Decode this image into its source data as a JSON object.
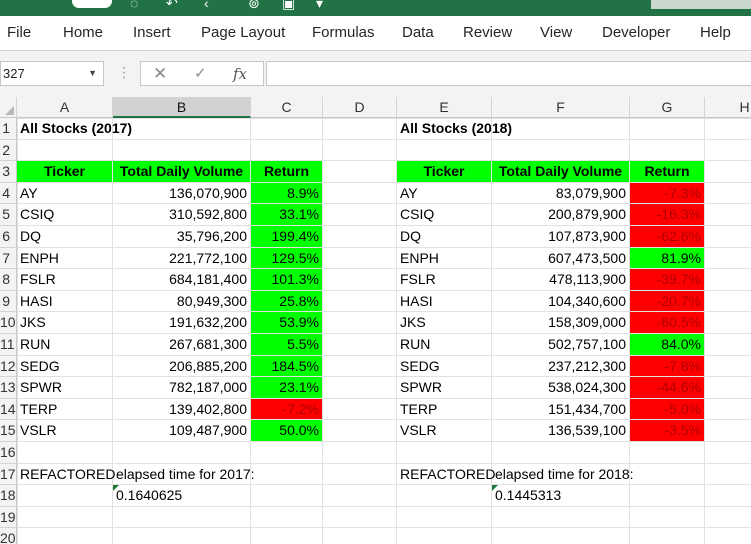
{
  "ribbon": {
    "tabs": [
      "File",
      "Home",
      "Insert",
      "Page Layout",
      "Formulas",
      "Data",
      "Review",
      "View",
      "Developer",
      "Help"
    ]
  },
  "formula_bar": {
    "name_box": "327",
    "cancel_icon": "x-icon",
    "enter_icon": "check-icon",
    "fx_label": "fx",
    "formula": ""
  },
  "columns": [
    "A",
    "B",
    "C",
    "D",
    "E",
    "F",
    "G",
    "H"
  ],
  "rows": [
    "1",
    "2",
    "3",
    "4",
    "5",
    "6",
    "7",
    "8",
    "9",
    "10",
    "11",
    "12",
    "13",
    "14",
    "15",
    "16",
    "17",
    "18",
    "19",
    "20"
  ],
  "sheet": {
    "title_2017": "All Stocks (2017)",
    "title_2018": "All Stocks (2018)",
    "headers": [
      "Ticker",
      "Total Daily Volume",
      "Return"
    ],
    "data_2017": [
      {
        "ticker": "AY",
        "volume": "136,070,900",
        "return": "8.9%",
        "status": "positive"
      },
      {
        "ticker": "CSIQ",
        "volume": "310,592,800",
        "return": "33.1%",
        "status": "positive"
      },
      {
        "ticker": "DQ",
        "volume": "35,796,200",
        "return": "199.4%",
        "status": "positive"
      },
      {
        "ticker": "ENPH",
        "volume": "221,772,100",
        "return": "129.5%",
        "status": "positive"
      },
      {
        "ticker": "FSLR",
        "volume": "684,181,400",
        "return": "101.3%",
        "status": "positive"
      },
      {
        "ticker": "HASI",
        "volume": "80,949,300",
        "return": "25.8%",
        "status": "positive"
      },
      {
        "ticker": "JKS",
        "volume": "191,632,200",
        "return": "53.9%",
        "status": "positive"
      },
      {
        "ticker": "RUN",
        "volume": "267,681,300",
        "return": "5.5%",
        "status": "positive"
      },
      {
        "ticker": "SEDG",
        "volume": "206,885,200",
        "return": "184.5%",
        "status": "positive"
      },
      {
        "ticker": "SPWR",
        "volume": "782,187,000",
        "return": "23.1%",
        "status": "positive"
      },
      {
        "ticker": "TERP",
        "volume": "139,402,800",
        "return": "-7.2%",
        "status": "negative"
      },
      {
        "ticker": "VSLR",
        "volume": "109,487,900",
        "return": "50.0%",
        "status": "positive"
      }
    ],
    "data_2018": [
      {
        "ticker": "AY",
        "volume": "83,079,900",
        "return": "-7.3%",
        "status": "negative"
      },
      {
        "ticker": "CSIQ",
        "volume": "200,879,900",
        "return": "-16.3%",
        "status": "negative"
      },
      {
        "ticker": "DQ",
        "volume": "107,873,900",
        "return": "-62.6%",
        "status": "negative"
      },
      {
        "ticker": "ENPH",
        "volume": "607,473,500",
        "return": "81.9%",
        "status": "positive"
      },
      {
        "ticker": "FSLR",
        "volume": "478,113,900",
        "return": "-39.7%",
        "status": "negative"
      },
      {
        "ticker": "HASI",
        "volume": "104,340,600",
        "return": "-20.7%",
        "status": "negative"
      },
      {
        "ticker": "JKS",
        "volume": "158,309,000",
        "return": "-60.5%",
        "status": "negative"
      },
      {
        "ticker": "RUN",
        "volume": "502,757,100",
        "return": "84.0%",
        "status": "positive"
      },
      {
        "ticker": "SEDG",
        "volume": "237,212,300",
        "return": "-7.8%",
        "status": "negative"
      },
      {
        "ticker": "SPWR",
        "volume": "538,024,300",
        "return": "-44.6%",
        "status": "negative"
      },
      {
        "ticker": "TERP",
        "volume": "151,434,700",
        "return": "-5.0%",
        "status": "negative"
      },
      {
        "ticker": "VSLR",
        "volume": "136,539,100",
        "return": "-3.5%",
        "status": "negative"
      }
    ],
    "elapsed_label_a": "REFACTORED",
    "elapsed_label_b_2017": "elapsed time for 2017:",
    "elapsed_label_b_2018": "elapsed time for 2018:",
    "elapsed_2017": "0.1640625",
    "elapsed_2018": "0.1445313"
  },
  "colors": {
    "positive": "#00ff00",
    "negative": "#ff0000",
    "brand": "#217346"
  }
}
